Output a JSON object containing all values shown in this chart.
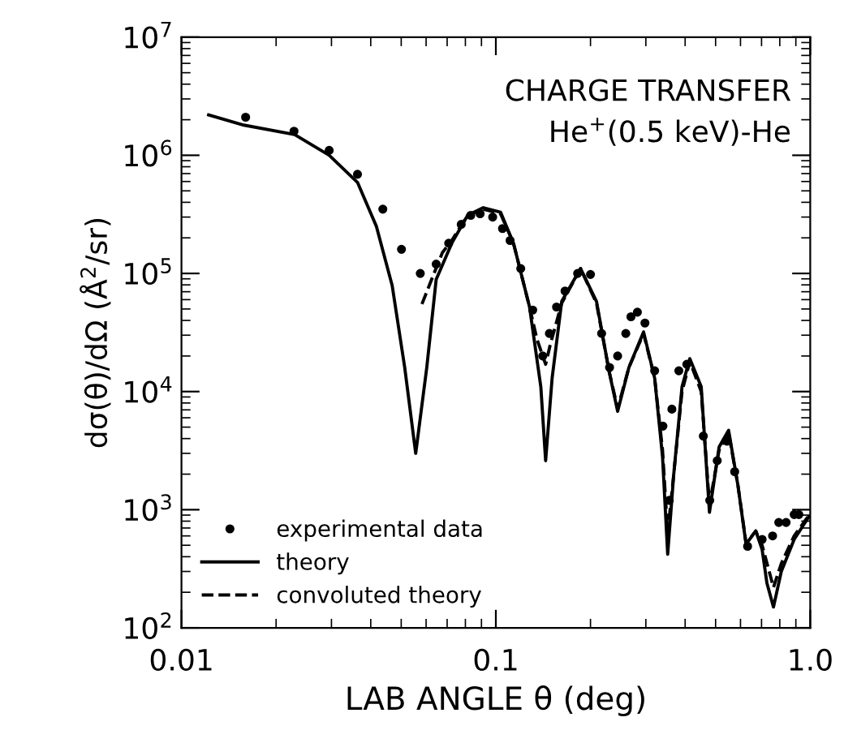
{
  "chart_data": {
    "type": "line",
    "xlabel": "LAB ANGLE θ (deg)",
    "ylabel": "dσ(θ)/dΩ (Å$^{2}$/sr)",
    "annotations": [
      "CHARGE TRANSFER",
      "He$^{+}$(0.5 keV)-He"
    ],
    "log": "xy",
    "xlim": [
      0.01,
      1.0
    ],
    "ylim": [
      100,
      10000000
    ],
    "xticks": [
      0.01,
      0.1,
      {
        "value": 1.0,
        "label": "1.0"
      }
    ],
    "yticks": [
      {
        "value": 100,
        "label": "10$^{2}$"
      },
      {
        "value": 1000,
        "label": "10$^{3}$"
      },
      {
        "value": 10000,
        "label": "10$^{4}$"
      },
      {
        "value": 100000,
        "label": "10$^{5}$"
      },
      {
        "value": 1000000,
        "label": "10$^{6}$"
      },
      {
        "value": 10000000,
        "label": "10$^{7}$"
      }
    ],
    "grid": false,
    "legend": "bottom left",
    "series": [
      {
        "name": "experimental data",
        "type": "scatter",
        "marker": "circle",
        "color": "#000000",
        "x": [
          0.016,
          0.0228,
          0.0295,
          0.0363,
          0.0437,
          0.0501,
          0.0575,
          0.0646,
          0.0708,
          0.0776,
          0.0832,
          0.0891,
          0.0977,
          0.105,
          0.111,
          0.12,
          0.131,
          0.141,
          0.148,
          0.156,
          0.166,
          0.182,
          0.2,
          0.217,
          0.23,
          0.244,
          0.259,
          0.269,
          0.282,
          0.298,
          0.32,
          0.34,
          0.356,
          0.363,
          0.382,
          0.405,
          0.457,
          0.479,
          0.506,
          0.543,
          0.575,
          0.632,
          0.703,
          0.759,
          0.794,
          0.838,
          0.889,
          0.92
        ],
        "values": [
          2100000,
          1600000,
          1100000,
          690000,
          350000,
          160000,
          100000,
          120000,
          180000,
          260000,
          310000,
          320000,
          300000,
          240000,
          190000,
          110000,
          49000,
          20000,
          31000,
          52000,
          71000,
          100000,
          98000,
          31000,
          16000,
          20000,
          31000,
          43000,
          47000,
          38000,
          15000,
          5100,
          1200,
          7100,
          15000,
          17000,
          4200,
          1200,
          2600,
          3800,
          2100,
          490,
          560,
          600,
          780,
          780,
          910,
          910
        ]
      },
      {
        "name": "theory",
        "line_style": "solid",
        "color": "#000000",
        "x": [
          0.0122,
          0.0158,
          0.0229,
          0.0295,
          0.0363,
          0.0417,
          0.0468,
          0.0513,
          0.0556,
          0.0603,
          0.0646,
          0.0724,
          0.0813,
          0.0912,
          0.1035,
          0.1138,
          0.128,
          0.139,
          0.144,
          0.151,
          0.162,
          0.186,
          0.209,
          0.229,
          0.244,
          0.265,
          0.295,
          0.32,
          0.339,
          0.352,
          0.368,
          0.391,
          0.414,
          0.45,
          0.478,
          0.513,
          0.55,
          0.589,
          0.625,
          0.671,
          0.703,
          0.728,
          0.764,
          0.809,
          0.889,
          0.989
        ],
        "values": [
          2200000,
          1800000,
          1500000,
          1000000,
          590000,
          250000,
          79000,
          16000,
          3000,
          16000,
          89000,
          180000,
          310000,
          360000,
          330000,
          180000,
          52000,
          11000,
          2600,
          13000,
          58000,
          110000,
          58000,
          15000,
          6800,
          16000,
          32000,
          13000,
          2800,
          420,
          2000,
          11000,
          19000,
          11000,
          950,
          3400,
          4700,
          1600,
          510,
          660,
          460,
          240,
          150,
          300,
          560,
          870
        ]
      },
      {
        "name": "convoluted theory",
        "line_style": "dashed",
        "color": "#000000",
        "x": [
          0.0582,
          0.0631,
          0.0676,
          0.0724,
          0.0813,
          0.0912,
          0.1035,
          0.1138,
          0.128,
          0.135,
          0.144,
          0.149,
          0.162,
          0.186,
          0.209,
          0.229,
          0.244,
          0.265,
          0.295,
          0.32,
          0.339,
          0.352,
          0.368,
          0.391,
          0.414,
          0.45,
          0.478,
          0.513,
          0.55,
          0.589,
          0.625,
          0.671,
          0.703,
          0.764,
          0.809,
          0.889,
          0.989
        ],
        "values": [
          55000,
          95000,
          150000,
          190000,
          310000,
          350000,
          320000,
          180000,
          52000,
          28000,
          17000,
          25000,
          56000,
          110000,
          56000,
          15000,
          7200,
          16000,
          31000,
          13000,
          3200,
          630,
          2000,
          10000,
          18000,
          10000,
          1100,
          3200,
          4500,
          1600,
          520,
          660,
          500,
          220,
          350,
          600,
          890
        ]
      }
    ]
  }
}
